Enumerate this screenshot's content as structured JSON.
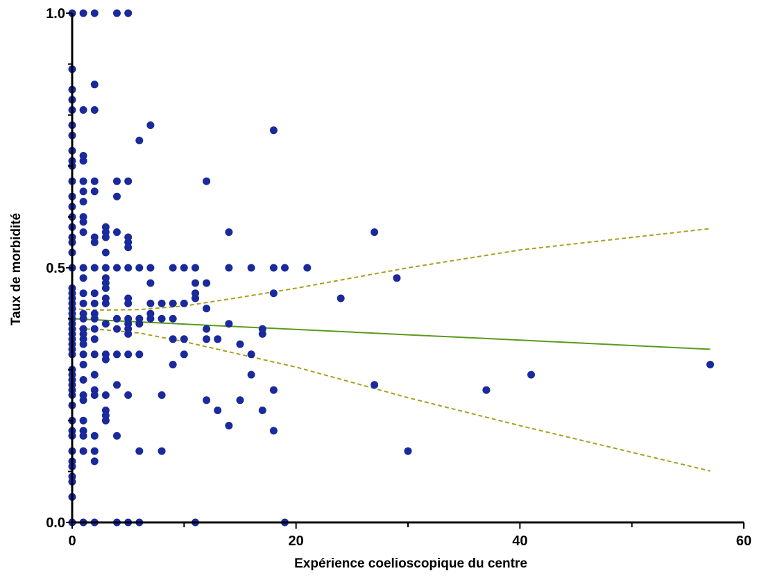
{
  "chart_data": {
    "type": "scatter",
    "title": "",
    "xlabel": "Expérience coelioscopique du centre",
    "ylabel": "Taux de morbidité",
    "xlim": [
      0,
      60
    ],
    "ylim": [
      0,
      1.0
    ],
    "x_ticks": [
      0,
      20,
      40,
      60
    ],
    "x_tick_labels": [
      "0",
      "20",
      "40",
      "60"
    ],
    "x_minor_ticks": [
      10,
      30,
      50
    ],
    "y_ticks": [
      0,
      0.5,
      1.0
    ],
    "y_tick_labels": [
      "0.0",
      "0.5",
      "1.0"
    ],
    "y_minor_ticks": [
      0.1,
      0.2,
      0.3,
      0.4,
      0.6,
      0.7,
      0.8,
      0.9
    ],
    "grid": false,
    "legend": "none",
    "colors": {
      "points": "#1a2a9c",
      "fit": "#5a9a1a",
      "ci": "#a6a020"
    },
    "series": [
      {
        "type": "scatter",
        "points": [
          [
            0,
            1.0
          ],
          [
            0,
            0.89
          ],
          [
            0,
            0.85
          ],
          [
            0,
            0.83
          ],
          [
            0,
            0.81
          ],
          [
            0,
            0.78
          ],
          [
            0,
            0.76
          ],
          [
            0,
            0.73
          ],
          [
            0,
            0.71
          ],
          [
            0,
            0.7
          ],
          [
            0,
            0.67
          ],
          [
            0,
            0.64
          ],
          [
            0,
            0.62
          ],
          [
            0,
            0.6
          ],
          [
            0,
            0.58
          ],
          [
            0,
            0.56
          ],
          [
            0,
            0.55
          ],
          [
            0,
            0.53
          ],
          [
            0,
            0.5
          ],
          [
            0,
            0.46
          ],
          [
            0,
            0.45
          ],
          [
            0,
            0.44
          ],
          [
            0,
            0.43
          ],
          [
            0,
            0.42
          ],
          [
            0,
            0.41
          ],
          [
            0,
            0.4
          ],
          [
            0,
            0.39
          ],
          [
            0,
            0.38
          ],
          [
            0,
            0.37
          ],
          [
            0,
            0.36
          ],
          [
            0,
            0.35
          ],
          [
            0,
            0.34
          ],
          [
            0,
            0.33
          ],
          [
            0,
            0.3
          ],
          [
            0,
            0.29
          ],
          [
            0,
            0.28
          ],
          [
            0,
            0.27
          ],
          [
            0,
            0.26
          ],
          [
            0,
            0.25
          ],
          [
            0,
            0.23
          ],
          [
            0,
            0.2
          ],
          [
            0,
            0.18
          ],
          [
            0,
            0.17
          ],
          [
            0,
            0.14
          ],
          [
            0,
            0.12
          ],
          [
            0,
            0.11
          ],
          [
            0,
            0.09
          ],
          [
            0,
            0.08
          ],
          [
            0,
            0.05
          ],
          [
            0,
            0.0
          ],
          [
            1,
            1.0
          ],
          [
            1,
            0.81
          ],
          [
            1,
            0.72
          ],
          [
            1,
            0.71
          ],
          [
            1,
            0.67
          ],
          [
            1,
            0.65
          ],
          [
            1,
            0.63
          ],
          [
            1,
            0.6
          ],
          [
            1,
            0.59
          ],
          [
            1,
            0.57
          ],
          [
            1,
            0.5
          ],
          [
            1,
            0.48
          ],
          [
            1,
            0.45
          ],
          [
            1,
            0.43
          ],
          [
            1,
            0.41
          ],
          [
            1,
            0.4
          ],
          [
            1,
            0.38
          ],
          [
            1,
            0.37
          ],
          [
            1,
            0.36
          ],
          [
            1,
            0.35
          ],
          [
            1,
            0.33
          ],
          [
            1,
            0.31
          ],
          [
            1,
            0.28
          ],
          [
            1,
            0.25
          ],
          [
            1,
            0.24
          ],
          [
            1,
            0.2
          ],
          [
            1,
            0.18
          ],
          [
            1,
            0.17
          ],
          [
            1,
            0.14
          ],
          [
            1,
            0.0
          ],
          [
            2,
            1.0
          ],
          [
            2,
            0.86
          ],
          [
            2,
            0.81
          ],
          [
            2,
            0.67
          ],
          [
            2,
            0.65
          ],
          [
            2,
            0.56
          ],
          [
            2,
            0.55
          ],
          [
            2,
            0.5
          ],
          [
            2,
            0.45
          ],
          [
            2,
            0.43
          ],
          [
            2,
            0.41
          ],
          [
            2,
            0.4
          ],
          [
            2,
            0.38
          ],
          [
            2,
            0.36
          ],
          [
            2,
            0.33
          ],
          [
            2,
            0.29
          ],
          [
            2,
            0.26
          ],
          [
            2,
            0.25
          ],
          [
            2,
            0.17
          ],
          [
            2,
            0.14
          ],
          [
            2,
            0.12
          ],
          [
            2,
            0.0
          ],
          [
            3,
            0.58
          ],
          [
            3,
            0.57
          ],
          [
            3,
            0.56
          ],
          [
            3,
            0.53
          ],
          [
            3,
            0.5
          ],
          [
            3,
            0.48
          ],
          [
            3,
            0.47
          ],
          [
            3,
            0.46
          ],
          [
            3,
            0.44
          ],
          [
            3,
            0.43
          ],
          [
            3,
            0.39
          ],
          [
            3,
            0.33
          ],
          [
            3,
            0.32
          ],
          [
            3,
            0.25
          ],
          [
            3,
            0.22
          ],
          [
            3,
            0.21
          ],
          [
            3,
            0.2
          ],
          [
            4,
            1.0
          ],
          [
            4,
            0.67
          ],
          [
            4,
            0.64
          ],
          [
            4,
            0.57
          ],
          [
            4,
            0.5
          ],
          [
            4,
            0.4
          ],
          [
            4,
            0.38
          ],
          [
            4,
            0.33
          ],
          [
            4,
            0.27
          ],
          [
            4,
            0.17
          ],
          [
            4,
            0.0
          ],
          [
            5,
            1.0
          ],
          [
            5,
            0.67
          ],
          [
            5,
            0.56
          ],
          [
            5,
            0.55
          ],
          [
            5,
            0.54
          ],
          [
            5,
            0.5
          ],
          [
            5,
            0.44
          ],
          [
            5,
            0.43
          ],
          [
            5,
            0.4
          ],
          [
            5,
            0.39
          ],
          [
            5,
            0.38
          ],
          [
            5,
            0.37
          ],
          [
            5,
            0.33
          ],
          [
            5,
            0.25
          ],
          [
            5,
            0.0
          ],
          [
            6,
            0.75
          ],
          [
            6,
            0.5
          ],
          [
            6,
            0.4
          ],
          [
            6,
            0.39
          ],
          [
            6,
            0.33
          ],
          [
            6,
            0.14
          ],
          [
            6,
            0.0
          ],
          [
            7,
            0.78
          ],
          [
            7,
            0.5
          ],
          [
            7,
            0.47
          ],
          [
            7,
            0.43
          ],
          [
            7,
            0.41
          ],
          [
            7,
            0.4
          ],
          [
            8,
            0.43
          ],
          [
            8,
            0.4
          ],
          [
            8,
            0.25
          ],
          [
            8,
            0.14
          ],
          [
            9,
            0.5
          ],
          [
            9,
            0.43
          ],
          [
            9,
            0.4
          ],
          [
            9,
            0.36
          ],
          [
            9,
            0.31
          ],
          [
            10,
            0.5
          ],
          [
            10,
            0.43
          ],
          [
            10,
            0.36
          ],
          [
            10,
            0.33
          ],
          [
            11,
            0.5
          ],
          [
            11,
            0.47
          ],
          [
            11,
            0.45
          ],
          [
            11,
            0.44
          ],
          [
            11,
            0.0
          ],
          [
            12,
            0.67
          ],
          [
            12,
            0.47
          ],
          [
            12,
            0.42
          ],
          [
            12,
            0.38
          ],
          [
            12,
            0.36
          ],
          [
            12,
            0.24
          ],
          [
            13,
            0.36
          ],
          [
            13,
            0.22
          ],
          [
            14,
            0.57
          ],
          [
            14,
            0.5
          ],
          [
            14,
            0.39
          ],
          [
            14,
            0.19
          ],
          [
            15,
            0.35
          ],
          [
            15,
            0.24
          ],
          [
            16,
            0.5
          ],
          [
            16,
            0.33
          ],
          [
            16,
            0.29
          ],
          [
            17,
            0.38
          ],
          [
            17,
            0.37
          ],
          [
            17,
            0.22
          ],
          [
            18,
            0.77
          ],
          [
            18,
            0.5
          ],
          [
            18,
            0.45
          ],
          [
            18,
            0.26
          ],
          [
            18,
            0.18
          ],
          [
            19,
            0.5
          ],
          [
            19,
            0.0
          ],
          [
            21,
            0.5
          ],
          [
            24,
            0.44
          ],
          [
            27,
            0.57
          ],
          [
            27,
            0.27
          ],
          [
            29,
            0.48
          ],
          [
            30,
            0.14
          ],
          [
            37,
            0.26
          ],
          [
            41,
            0.29
          ],
          [
            57,
            0.31
          ]
        ]
      },
      {
        "type": "line",
        "style": "solid",
        "x": [
          0,
          57
        ],
        "y": [
          0.4,
          0.34
        ]
      },
      {
        "type": "line",
        "style": "dashed",
        "x": [
          0,
          3,
          6,
          10,
          15,
          20,
          30,
          40,
          57
        ],
        "y": [
          0.419,
          0.417,
          0.418,
          0.425,
          0.442,
          0.46,
          0.5,
          0.535,
          0.577
        ]
      },
      {
        "type": "line",
        "style": "dashed",
        "x": [
          0,
          3,
          6,
          10,
          15,
          20,
          30,
          40,
          57
        ],
        "y": [
          0.381,
          0.378,
          0.372,
          0.355,
          0.33,
          0.305,
          0.245,
          0.19,
          0.101
        ]
      }
    ]
  }
}
